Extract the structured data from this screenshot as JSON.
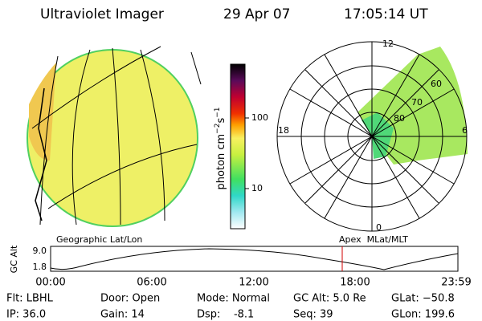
{
  "header": {
    "instrument": "Ultraviolet Imager",
    "date": "29 Apr 07",
    "time": "17:05:14 UT"
  },
  "colorbar": {
    "label_base": "photon cm",
    "label_exp1": "−2",
    "label_unit2": "s",
    "label_exp2": "−1",
    "ticks": [
      "100",
      "10"
    ]
  },
  "polar": {
    "hours": [
      "12",
      "18",
      "6",
      "0"
    ],
    "latitudes": [
      "60",
      "70",
      "80"
    ]
  },
  "plot": {
    "left_label": "Geographic Lat/Lon",
    "right_label": "Apex  MLat/MLT",
    "ylabel": "GC Alt",
    "yticks": [
      "9.0",
      "1.8"
    ],
    "xticks": [
      "00:00",
      "06:00",
      "12:00",
      "18:00",
      "23:59"
    ]
  },
  "footer": {
    "rows": [
      [
        "Flt: LBHL",
        "Door: Open",
        "Mode: Normal",
        "GC Alt: 5.0 Re",
        "GLat: −50.8"
      ],
      [
        "IP: 36.0",
        "Gain: 14",
        "Dsp:    -8.1",
        "Seq: 39",
        "GLon: 199.6"
      ]
    ]
  }
}
